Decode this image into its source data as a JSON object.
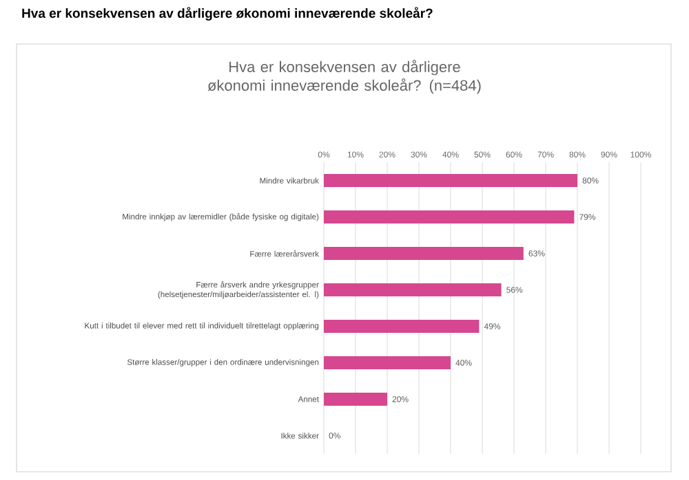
{
  "chart_data": {
    "type": "bar",
    "orientation": "horizontal",
    "title": "Hva er konsekvensen av dårligere økonomi inneværende skoleår?",
    "subtitle": "Hva er konsekvensen av dårligere økonomi inneværende skoleår? (n=484)",
    "categories": [
      "Mindre vikarbruk",
      "Mindre innkjøp av læremidler (både fysiske og digitale)",
      "Færre lærerårsverk",
      "Færre årsverk andre yrkesgrupper (helsetjenester/miljøarbeider/assistenter el. l)",
      "Kutt i tilbudet til elever med rett til individuelt tilrettelagt opplæring",
      "Større klasser/grupper i den ordinære undervisningen",
      "Annet",
      "Ikke sikker"
    ],
    "values": [
      80,
      79,
      63,
      56,
      49,
      40,
      20,
      0
    ],
    "value_labels": [
      "80%",
      "79%",
      "63%",
      "56%",
      "49%",
      "40%",
      "20%",
      "0%"
    ],
    "color": "#d6478f",
    "xlim": [
      0,
      100
    ],
    "xticks": [
      {
        "value": 0,
        "label": "0%"
      },
      {
        "value": 10,
        "label": "10%"
      },
      {
        "value": 20,
        "label": "20%"
      },
      {
        "value": 30,
        "label": "30%"
      },
      {
        "value": 40,
        "label": "40%"
      },
      {
        "value": 50,
        "label": "50%"
      },
      {
        "value": 60,
        "label": "60%"
      },
      {
        "value": 70,
        "label": "70%"
      },
      {
        "value": 80,
        "label": "80%"
      },
      {
        "value": 90,
        "label": "90%"
      },
      {
        "value": 100,
        "label": "100%"
      }
    ],
    "grid": "x"
  }
}
